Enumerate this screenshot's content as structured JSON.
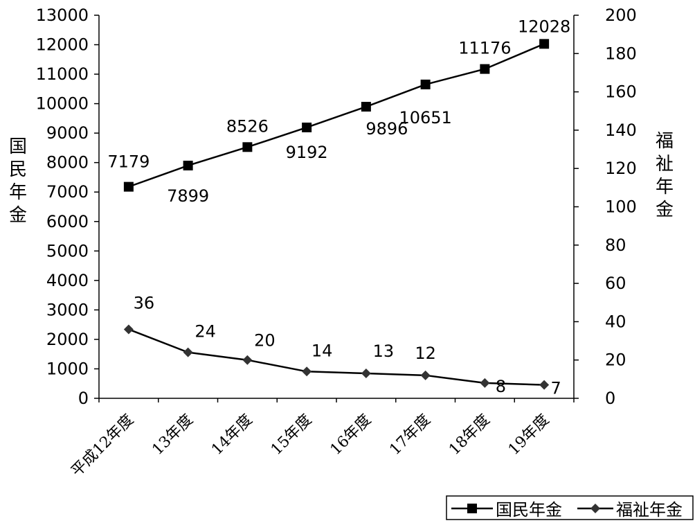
{
  "chart_data": {
    "type": "line",
    "categories": [
      "平成12年度",
      "13年度",
      "14年度",
      "15年度",
      "16年度",
      "17年度",
      "18年度",
      "19年度"
    ],
    "series": [
      {
        "name": "国民年金",
        "axis": "left",
        "marker": "square",
        "values": [
          7179,
          7899,
          8526,
          9192,
          9896,
          10651,
          11176,
          12028
        ]
      },
      {
        "name": "福祉年金",
        "axis": "right",
        "marker": "diamond",
        "values": [
          36,
          24,
          20,
          14,
          13,
          12,
          8,
          7
        ]
      }
    ],
    "left_axis": {
      "label": "国民年金",
      "ylim": [
        0,
        13000
      ],
      "ticks": [
        "0",
        "1000",
        "2000",
        "3000",
        "4000",
        "5000",
        "6000",
        "7000",
        "8000",
        "9000",
        "10000",
        "11000",
        "12000",
        "13000"
      ]
    },
    "right_axis": {
      "label": "福祉年金",
      "ylim": [
        0,
        200
      ],
      "ticks": [
        "0",
        "20",
        "40",
        "60",
        "80",
        "100",
        "120",
        "140",
        "160",
        "180",
        "200"
      ]
    },
    "legend": {
      "position": "bottom-right",
      "items": [
        "国民年金",
        "福祉年金"
      ]
    },
    "grid": false,
    "colors": {
      "line": "#000000",
      "marker_square": "#000000",
      "marker_diamond": "#333333"
    }
  }
}
